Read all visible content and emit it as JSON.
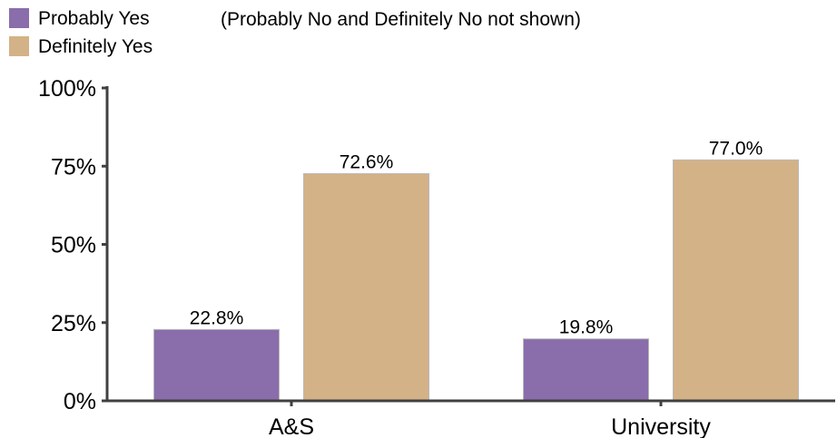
{
  "chart_data": {
    "type": "bar",
    "note": "(Probably No and Definitely No not shown)",
    "categories": [
      "A&S",
      "University"
    ],
    "series": [
      {
        "name": "Probably Yes",
        "values": [
          22.8,
          19.8
        ],
        "color": "#8a6dab",
        "labels": [
          "22.8%",
          "19.8%"
        ]
      },
      {
        "name": "Definitely Yes",
        "values": [
          72.6,
          77.0
        ],
        "color": "#d4b287",
        "labels": [
          "72.6%",
          "77.0%"
        ]
      }
    ],
    "ylim": [
      0,
      100
    ],
    "yticks": [
      0,
      25,
      50,
      75,
      100
    ],
    "ytick_labels": [
      "0%",
      "25%",
      "50%",
      "75%",
      "100%"
    ],
    "grid": false,
    "legend_position": "top-left"
  }
}
